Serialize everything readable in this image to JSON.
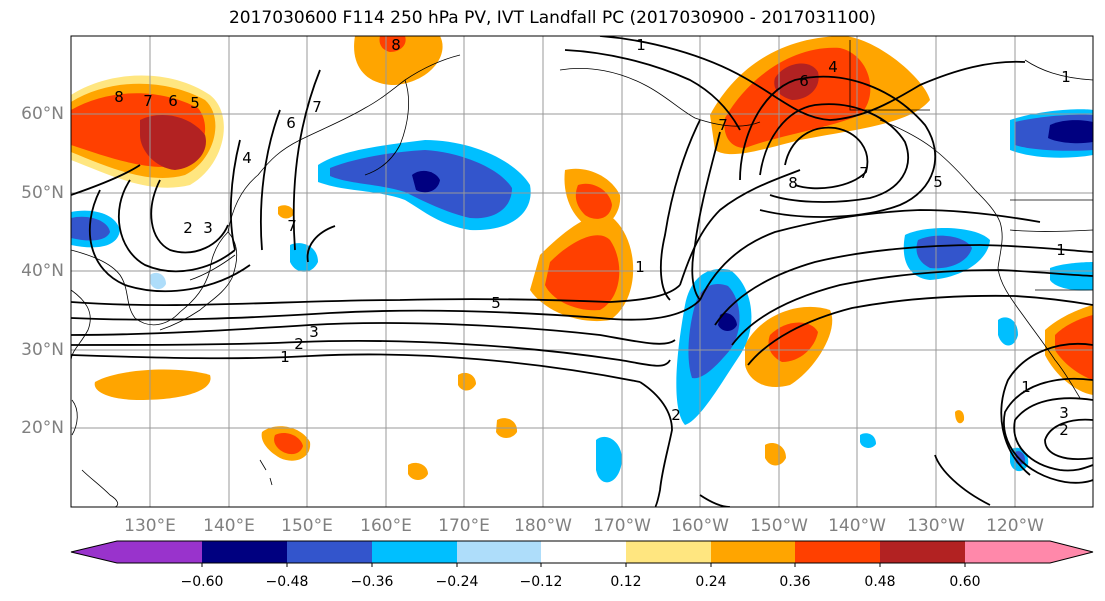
{
  "title": "2017030600 F114 250 hPa PV, IVT Landfall PC (2017030900 - 2017031100)",
  "latitude_labels": [
    "60°N",
    "50°N",
    "40°N",
    "30°N",
    "20°N"
  ],
  "longitude_labels": [
    "130°E",
    "140°E",
    "150°E",
    "160°E",
    "170°E",
    "180°W",
    "170°W",
    "160°W",
    "150°W",
    "140°W",
    "130°W",
    "120°W"
  ],
  "colorbar": {
    "tick_labels": [
      "−0.60",
      "−0.48",
      "−0.36",
      "−0.24",
      "−0.12",
      "0.12",
      "0.24",
      "0.36",
      "0.48",
      "0.60"
    ],
    "colors": [
      "#9933cc",
      "#000080",
      "#3355cc",
      "#00bfff",
      "#aeddfa",
      "#ffffff",
      "#ffe680",
      "#ffa500",
      "#ff4000",
      "#b22222",
      "#ff88aa"
    ]
  },
  "contour_labels": [
    "8",
    "7",
    "6",
    "5",
    "4",
    "2",
    "3",
    "6",
    "7",
    "7",
    "1",
    "2",
    "3",
    "5",
    "1",
    "8",
    "7",
    "5",
    "4",
    "6",
    "1",
    "2",
    "3",
    "2",
    "1",
    "7",
    "1",
    "8",
    "1"
  ],
  "palette": {
    "contour": "#000000",
    "coast": "#000000",
    "grid": "#999999",
    "axis_text": "#808080"
  }
}
